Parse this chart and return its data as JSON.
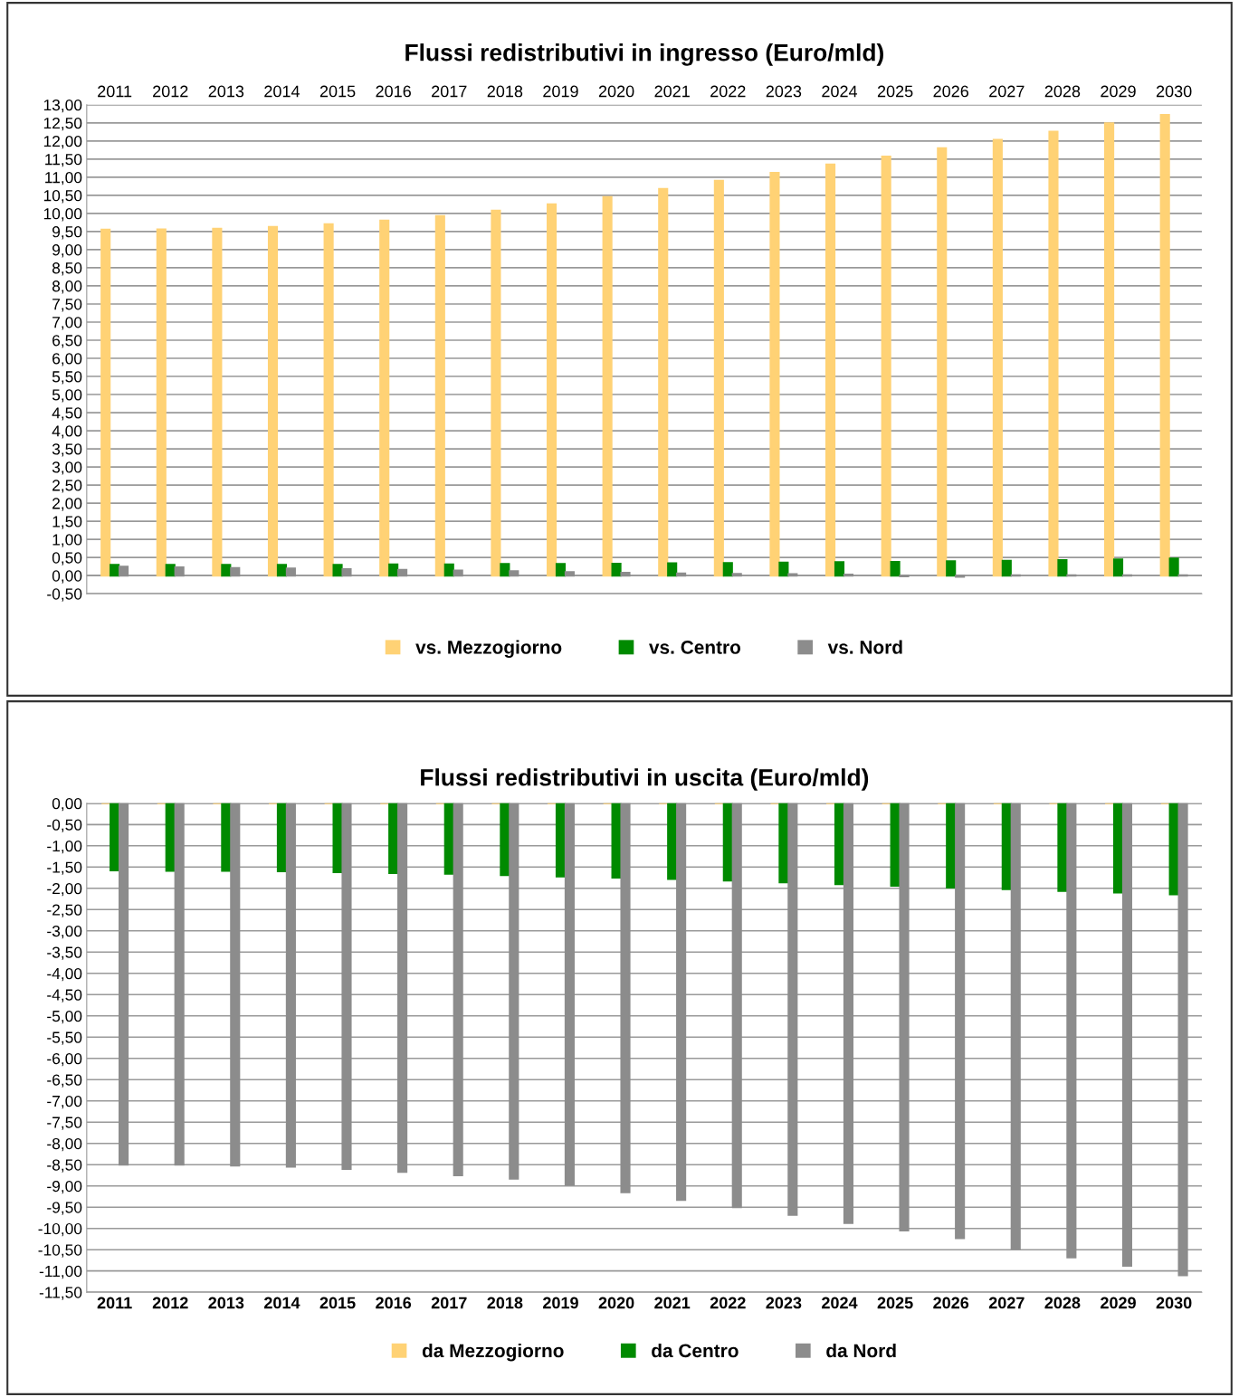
{
  "chart_data": [
    {
      "type": "bar",
      "title": "Flussi redistributivi in ingresso (Euro/mld)",
      "categories": [
        "2011",
        "2012",
        "2013",
        "2014",
        "2015",
        "2016",
        "2017",
        "2018",
        "2019",
        "2020",
        "2021",
        "2022",
        "2023",
        "2024",
        "2025",
        "2026",
        "2027",
        "2028",
        "2029",
        "2030"
      ],
      "series": [
        {
          "name": "vs. Mezzogiorno",
          "color": "#ffd275",
          "values": [
            9.55,
            9.56,
            9.58,
            9.63,
            9.7,
            9.8,
            9.93,
            10.08,
            10.25,
            10.45,
            10.68,
            10.9,
            11.12,
            11.35,
            11.57,
            11.8,
            12.03,
            12.26,
            12.49,
            12.72
          ]
        },
        {
          "name": "vs. Centro",
          "color": "#008a00",
          "values": [
            0.3,
            0.3,
            0.3,
            0.3,
            0.3,
            0.31,
            0.31,
            0.32,
            0.32,
            0.33,
            0.34,
            0.35,
            0.36,
            0.37,
            0.38,
            0.4,
            0.41,
            0.43,
            0.45,
            0.47
          ]
        },
        {
          "name": "vs. Nord",
          "color": "#8c8c8c",
          "values": [
            0.25,
            0.23,
            0.21,
            0.2,
            0.18,
            0.16,
            0.14,
            0.12,
            0.1,
            0.08,
            0.06,
            0.05,
            0.04,
            0.03,
            -0.02,
            -0.03,
            0.01,
            0.01,
            0.01,
            0.01
          ]
        }
      ],
      "ylim": [
        -0.5,
        13
      ],
      "yticks": [
        {
          "value": -0.5,
          "label": "-0,50"
        },
        {
          "value": 0,
          "label": "0,00"
        },
        {
          "value": 0.5,
          "label": "0,50"
        },
        {
          "value": 1,
          "label": "1,00"
        },
        {
          "value": 1.5,
          "label": "1,50"
        },
        {
          "value": 2,
          "label": "2,00"
        },
        {
          "value": 2.5,
          "label": "2,50"
        },
        {
          "value": 3,
          "label": "3,00"
        },
        {
          "value": 3.5,
          "label": "3,50"
        },
        {
          "value": 4,
          "label": "4,00"
        },
        {
          "value": 4.5,
          "label": "4,50"
        },
        {
          "value": 5,
          "label": "5,00"
        },
        {
          "value": 5.5,
          "label": "5,50"
        },
        {
          "value": 6,
          "label": "6,00"
        },
        {
          "value": 6.5,
          "label": "6,50"
        },
        {
          "value": 7,
          "label": "7,00"
        },
        {
          "value": 7.5,
          "label": "7,50"
        },
        {
          "value": 8,
          "label": "8,00"
        },
        {
          "value": 8.5,
          "label": "8,50"
        },
        {
          "value": 9,
          "label": "9,00"
        },
        {
          "value": 9.5,
          "label": "9,50"
        },
        {
          "value": 10,
          "label": "10,00"
        },
        {
          "value": 10.5,
          "label": "10,50"
        },
        {
          "value": 11,
          "label": "11,00"
        },
        {
          "value": 11.5,
          "label": "11,50"
        },
        {
          "value": 12,
          "label": "12,00"
        },
        {
          "value": 12.5,
          "label": "12,50"
        },
        {
          "value": 13,
          "label": "13,00"
        }
      ],
      "grid": "y",
      "legend": "bottom"
    },
    {
      "type": "bar",
      "title": "Flussi redistributivi in uscita (Euro/mld)",
      "categories": [
        "2011",
        "2012",
        "2013",
        "2014",
        "2015",
        "2016",
        "2017",
        "2018",
        "2019",
        "2020",
        "2021",
        "2022",
        "2023",
        "2024",
        "2025",
        "2026",
        "2027",
        "2028",
        "2029",
        "2030"
      ],
      "series": [
        {
          "name": "da Mezzogiorno",
          "color": "#ffd275",
          "values": [
            0,
            0,
            0,
            0,
            0,
            0,
            0,
            0,
            0,
            0,
            0,
            0,
            0,
            0,
            0,
            0,
            0,
            0,
            0,
            0
          ]
        },
        {
          "name": "da Centro",
          "color": "#008a00",
          "values": [
            -1.58,
            -1.59,
            -1.59,
            -1.6,
            -1.62,
            -1.64,
            -1.66,
            -1.69,
            -1.72,
            -1.75,
            -1.78,
            -1.82,
            -1.86,
            -1.9,
            -1.94,
            -1.98,
            -2.02,
            -2.06,
            -2.1,
            -2.14
          ]
        },
        {
          "name": "da Nord",
          "color": "#8c8c8c",
          "values": [
            -8.5,
            -8.5,
            -8.52,
            -8.55,
            -8.6,
            -8.67,
            -8.75,
            -8.83,
            -8.97,
            -9.15,
            -9.33,
            -9.5,
            -9.68,
            -9.87,
            -10.05,
            -10.23,
            -10.48,
            -10.68,
            -10.88,
            -11.1
          ]
        }
      ],
      "ylim": [
        -11.5,
        0
      ],
      "yticks": [
        {
          "value": -11.5,
          "label": "-11,50"
        },
        {
          "value": -11,
          "label": "-11,00"
        },
        {
          "value": -10.5,
          "label": "-10,50"
        },
        {
          "value": -10,
          "label": "-10,00"
        },
        {
          "value": -9.5,
          "label": "-9,50"
        },
        {
          "value": -9,
          "label": "-9,00"
        },
        {
          "value": -8.5,
          "label": "-8,50"
        },
        {
          "value": -8,
          "label": "-8,00"
        },
        {
          "value": -7.5,
          "label": "-7,50"
        },
        {
          "value": -7,
          "label": "-7,00"
        },
        {
          "value": -6.5,
          "label": "-6,50"
        },
        {
          "value": -6,
          "label": "-6,00"
        },
        {
          "value": -5.5,
          "label": "-5,50"
        },
        {
          "value": -5,
          "label": "-5,00"
        },
        {
          "value": -4.5,
          "label": "-4,50"
        },
        {
          "value": -4,
          "label": "-4,00"
        },
        {
          "value": -3.5,
          "label": "-3,50"
        },
        {
          "value": -3,
          "label": "-3,00"
        },
        {
          "value": -2.5,
          "label": "-2,50"
        },
        {
          "value": -2,
          "label": "-2,00"
        },
        {
          "value": -1.5,
          "label": "-1,50"
        },
        {
          "value": -1,
          "label": "-1,00"
        },
        {
          "value": -0.5,
          "label": "-0,50"
        },
        {
          "value": 0,
          "label": "0,00"
        }
      ],
      "grid": "y",
      "legend": "bottom"
    }
  ]
}
